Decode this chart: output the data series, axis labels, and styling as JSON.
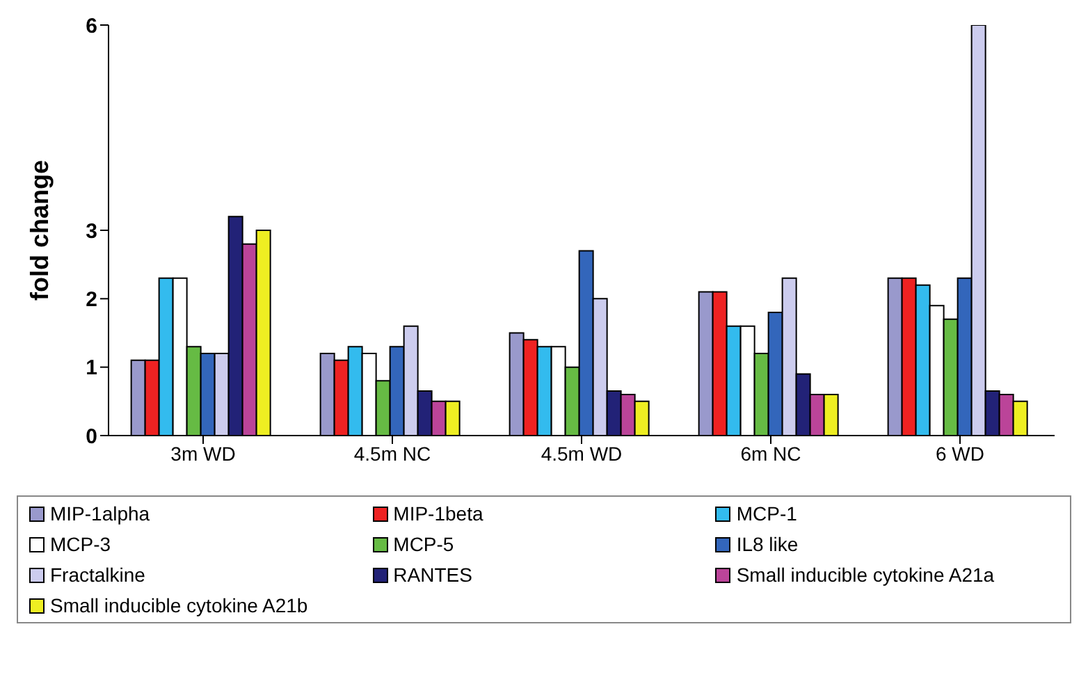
{
  "chart_data": {
    "type": "bar",
    "ylabel": "fold change",
    "categories": [
      "3m WD",
      "4.5m NC",
      "4.5m WD",
      "6m NC",
      "6 WD"
    ],
    "series": [
      {
        "name": "MIP-1alpha",
        "color": "#9999cc",
        "values": [
          1.1,
          1.2,
          1.5,
          2.1,
          2.3
        ]
      },
      {
        "name": "MIP-1beta",
        "color": "#ee2222",
        "values": [
          1.1,
          1.1,
          1.4,
          2.1,
          2.3
        ]
      },
      {
        "name": "MCP-1",
        "color": "#33bbee",
        "values": [
          2.3,
          1.3,
          1.3,
          1.6,
          2.2
        ]
      },
      {
        "name": "MCP-3",
        "color": "#ffffff",
        "values": [
          2.3,
          1.2,
          1.3,
          1.6,
          1.9
        ]
      },
      {
        "name": "MCP-5",
        "color": "#66bb44",
        "values": [
          1.3,
          0.8,
          1.0,
          1.2,
          1.7
        ]
      },
      {
        "name": "IL8 like",
        "color": "#3366bb",
        "values": [
          1.2,
          1.3,
          2.7,
          1.8,
          2.3
        ]
      },
      {
        "name": "Fractalkine",
        "color": "#ccccee",
        "values": [
          1.2,
          1.6,
          2.0,
          2.3,
          6
        ]
      },
      {
        "name": "RANTES",
        "color": "#222277",
        "values": [
          3.2,
          0.65,
          0.65,
          0.9,
          0.65
        ]
      },
      {
        "name": "Small inducible cytokine A21a",
        "color": "#bb4499",
        "values": [
          2.8,
          0.5,
          0.6,
          0.6,
          0.6
        ]
      },
      {
        "name": "Small inducible cytokine A21b",
        "color": "#eeee22",
        "values": [
          3.0,
          0.5,
          0.5,
          0.6,
          0.5
        ]
      }
    ],
    "ylim": [
      0,
      6
    ],
    "yticks": [
      0,
      1,
      2,
      3,
      6
    ],
    "grid": false,
    "legend": "bottom"
  }
}
